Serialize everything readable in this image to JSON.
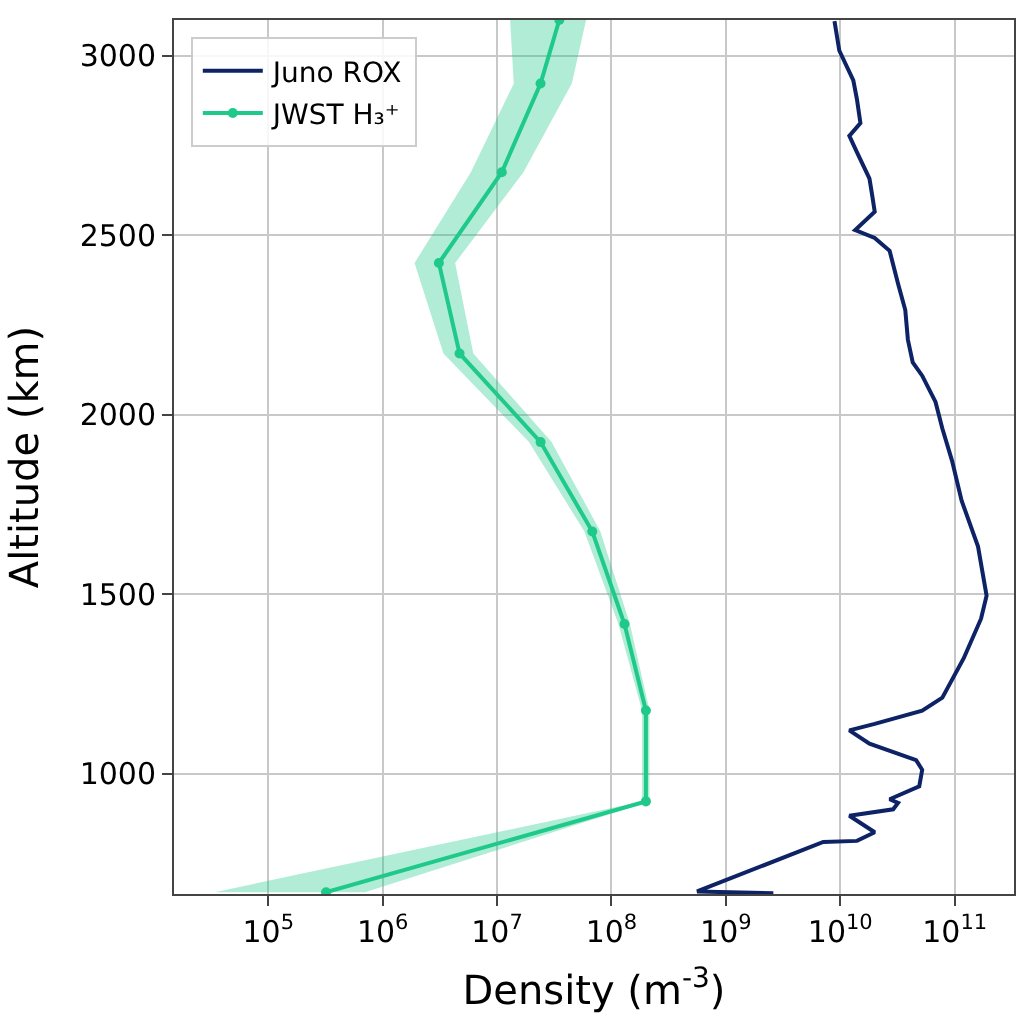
{
  "chart_data": {
    "type": "line",
    "orientation": "horizontal",
    "xlabel": "Density (m$^{-3}$)",
    "ylabel": "Altitude (km)",
    "log": "x",
    "grid": true,
    "legend": "top left",
    "xlim": [
      15000.0,
      330000000000.0
    ],
    "ylim": [
      665,
      3100
    ],
    "xticks": [
      {
        "value": 100000.0,
        "label": "10$^{5}$"
      },
      {
        "value": 1000000.0,
        "label": "10$^{6}$"
      },
      {
        "value": 10000000.0,
        "label": "10$^{7}$"
      },
      {
        "value": 100000000.0,
        "label": "10$^{8}$"
      },
      {
        "value": 1000000000.0,
        "label": "10$^{9}$"
      },
      {
        "value": 10000000000.0,
        "label": "10$^{10}$"
      },
      {
        "value": 100000000000.0,
        "label": "10$^{11}$"
      }
    ],
    "yticks": [
      1000,
      1500,
      2000,
      2500,
      3000
    ],
    "series": [
      {
        "name": "Juno ROX",
        "color": "#0d2366",
        "marker": "none",
        "x": [
          3097,
          3015,
          2932,
          2878,
          2813,
          2777,
          2731,
          2658,
          2612,
          2566,
          2515,
          2493,
          2457,
          2365,
          2292,
          2209,
          2146,
          2109,
          2036,
          1962,
          1871,
          1761,
          1633,
          1496,
          1432,
          1322,
          1212,
          1176,
          1139,
          1121,
          1084,
          1038,
          1011,
          965,
          929,
          919,
          901,
          883,
          837,
          813,
          810,
          672,
          667
        ],
        "values": [
          8900000000.0,
          9800000000.0,
          13000000000.0,
          14000000000.0,
          15000000000.0,
          12000000000.0,
          14000000000.0,
          18000000000.0,
          19000000000.0,
          20000000000.0,
          13500000000.0,
          20000000000.0,
          27000000000.0,
          32000000000.0,
          37000000000.0,
          39000000000.0,
          43000000000.0,
          52000000000.0,
          68000000000.0,
          78000000000.0,
          95000000000.0,
          115000000000.0,
          160000000000.0,
          190000000000.0,
          170000000000.0,
          120000000000.0,
          78000000000.0,
          52000000000.0,
          20000000000.0,
          12000000000.0,
          18000000000.0,
          46000000000.0,
          52000000000.0,
          49000000000.0,
          27000000000.0,
          32000000000.0,
          29000000000.0,
          12000000000.0,
          20000000000.0,
          14000000000.0,
          7100000000.0,
          560000000.0,
          2600000000.0
        ]
      },
      {
        "name": "JWST H₃⁺",
        "color": "#1ec98a",
        "marker": "circle",
        "x": [
          670,
          923,
          1176,
          1417,
          1675,
          1924,
          2171,
          2423,
          2676,
          2923,
          3100
        ],
        "values": [
          320000.0,
          200000000.0,
          200000000.0,
          130000000.0,
          68000000.0,
          24000000.0,
          4700000.0,
          3100000.0,
          11000000.0,
          24000000.0,
          35000000.0
        ],
        "lower": [
          34000.0,
          185000000.0,
          185000000.0,
          115000000.0,
          58000000.0,
          19000000.0,
          3400000.0,
          1900000.0,
          5900000.0,
          14000000.0,
          13000000.0
        ],
        "upper": [
          700000.0,
          215000000.0,
          215000000.0,
          145000000.0,
          80000000.0,
          30000000.0,
          6200000.0,
          4300000.0,
          17000000.0,
          45000000.0,
          60000000.0
        ]
      }
    ]
  }
}
